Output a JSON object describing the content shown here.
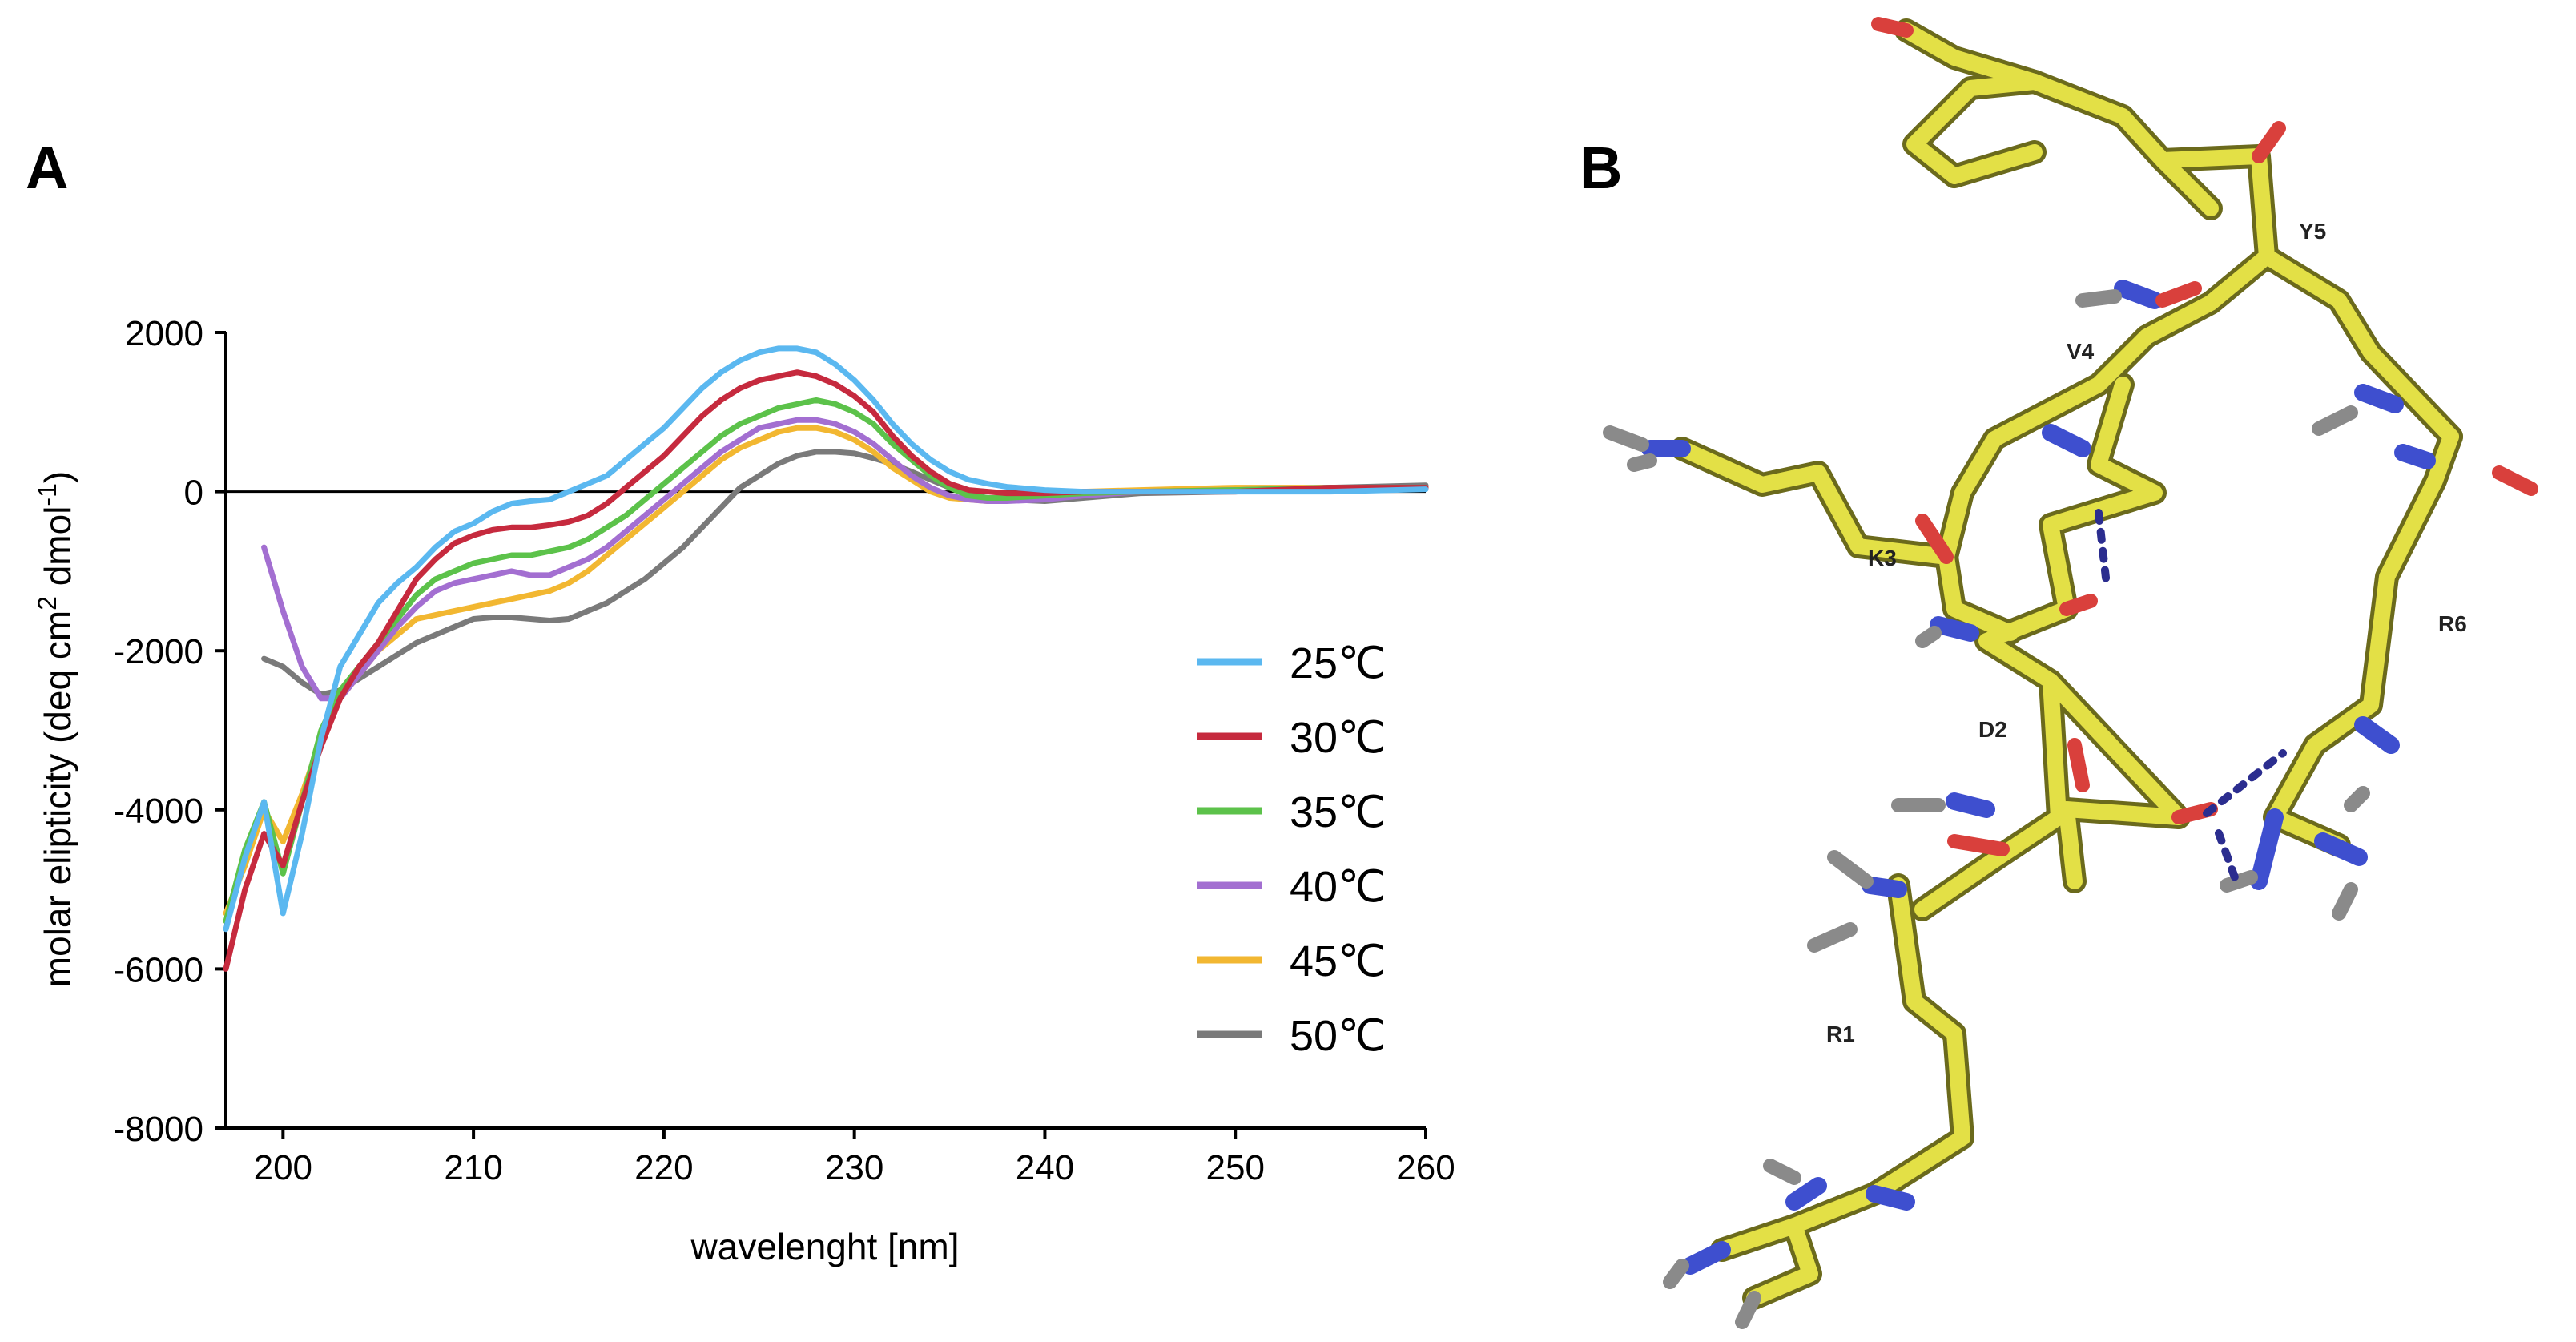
{
  "panels": {
    "a": "A",
    "b": "B"
  },
  "chart_data": {
    "type": "line",
    "xlabel": "wavelenght [nm]",
    "ylabel": "molar elipticity (deq cm",
    "ylabel_sup": "2",
    "ylabel_mid": " dmol",
    "ylabel_sup2": "-1",
    "ylabel_end": ")",
    "xlim": [
      197,
      260
    ],
    "ylim": [
      -8000,
      2000
    ],
    "xticks": [
      "200",
      "210",
      "220",
      "230",
      "240",
      "250",
      "260"
    ],
    "yticks": [
      "2000",
      "0",
      "-2000",
      "-4000",
      "-6000",
      "-8000"
    ],
    "legend_position": "right-middle",
    "series": [
      {
        "name": "25℃",
        "color": "#5bb8f0",
        "x": [
          197,
          198,
          199,
          200,
          201,
          202,
          203,
          204,
          205,
          206,
          207,
          208,
          209,
          210,
          211,
          212,
          213,
          214,
          215,
          216,
          217,
          218,
          219,
          220,
          221,
          222,
          223,
          224,
          225,
          226,
          227,
          228,
          229,
          230,
          231,
          232,
          233,
          234,
          235,
          236,
          237,
          238,
          240,
          242,
          245,
          250,
          255,
          260
        ],
        "y": [
          -5500,
          -4600,
          -3900,
          -5300,
          -4300,
          -3100,
          -2200,
          -1800,
          -1400,
          -1150,
          -950,
          -700,
          -500,
          -400,
          -250,
          -150,
          -120,
          -100,
          0,
          100,
          200,
          400,
          600,
          800,
          1050,
          1300,
          1500,
          1650,
          1750,
          1800,
          1800,
          1750,
          1600,
          1400,
          1150,
          850,
          600,
          400,
          250,
          150,
          100,
          60,
          20,
          0,
          0,
          0,
          0,
          30
        ]
      },
      {
        "name": "30℃",
        "color": "#c62a3e",
        "x": [
          197,
          198,
          199,
          200,
          201,
          202,
          203,
          204,
          205,
          206,
          207,
          208,
          209,
          210,
          211,
          212,
          213,
          214,
          215,
          216,
          217,
          218,
          219,
          220,
          221,
          222,
          223,
          224,
          225,
          226,
          227,
          228,
          229,
          230,
          231,
          232,
          233,
          234,
          235,
          236,
          237,
          238,
          240,
          242,
          245,
          250,
          255,
          260
        ],
        "y": [
          -6000,
          -5000,
          -4300,
          -4700,
          -3900,
          -3200,
          -2600,
          -2200,
          -1900,
          -1500,
          -1100,
          -850,
          -650,
          -550,
          -480,
          -450,
          -450,
          -420,
          -380,
          -300,
          -150,
          50,
          250,
          450,
          700,
          950,
          1150,
          1300,
          1400,
          1450,
          1500,
          1450,
          1350,
          1200,
          1000,
          700,
          450,
          250,
          100,
          20,
          0,
          -20,
          -20,
          0,
          0,
          0,
          50,
          50
        ]
      },
      {
        "name": "35℃",
        "color": "#5cc24a",
        "x": [
          197,
          198,
          199,
          200,
          201,
          202,
          203,
          204,
          205,
          206,
          207,
          208,
          209,
          210,
          211,
          212,
          213,
          214,
          215,
          216,
          217,
          218,
          219,
          220,
          221,
          222,
          223,
          224,
          225,
          226,
          227,
          228,
          229,
          230,
          231,
          232,
          233,
          234,
          235,
          236,
          237,
          238,
          240,
          242,
          245,
          250,
          255,
          260
        ],
        "y": [
          -5400,
          -4500,
          -3900,
          -4800,
          -3900,
          -3000,
          -2500,
          -2200,
          -1900,
          -1600,
          -1300,
          -1100,
          -1000,
          -900,
          -850,
          -800,
          -800,
          -750,
          -700,
          -600,
          -450,
          -300,
          -100,
          100,
          300,
          500,
          700,
          850,
          950,
          1050,
          1100,
          1150,
          1100,
          1000,
          850,
          600,
          400,
          200,
          50,
          -50,
          -80,
          -80,
          -50,
          -20,
          0,
          20,
          50,
          50
        ]
      },
      {
        "name": "40℃",
        "color": "#a36fd1",
        "x": [
          199,
          200,
          201,
          202,
          203,
          204,
          205,
          206,
          207,
          208,
          209,
          210,
          211,
          212,
          213,
          214,
          215,
          216,
          217,
          218,
          219,
          220,
          221,
          222,
          223,
          224,
          225,
          226,
          227,
          228,
          229,
          230,
          231,
          232,
          233,
          234,
          235,
          236,
          237,
          238,
          240,
          242,
          245,
          250,
          255,
          260
        ],
        "y": [
          -700,
          -1500,
          -2200,
          -2600,
          -2600,
          -2300,
          -2000,
          -1700,
          -1450,
          -1250,
          -1150,
          -1100,
          -1050,
          -1000,
          -1050,
          -1050,
          -950,
          -850,
          -700,
          -500,
          -300,
          -100,
          100,
          300,
          500,
          650,
          800,
          850,
          900,
          900,
          850,
          750,
          600,
          400,
          200,
          50,
          -50,
          -100,
          -120,
          -120,
          -100,
          -50,
          0,
          20,
          50,
          50
        ]
      },
      {
        "name": "45℃",
        "color": "#f2b731",
        "x": [
          197,
          198,
          199,
          200,
          201,
          202,
          203,
          204,
          205,
          206,
          207,
          208,
          209,
          210,
          211,
          212,
          213,
          214,
          215,
          216,
          217,
          218,
          219,
          220,
          221,
          222,
          223,
          224,
          225,
          226,
          227,
          228,
          229,
          230,
          231,
          232,
          233,
          234,
          235,
          236,
          237,
          238,
          240,
          242,
          245,
          250,
          255,
          260
        ],
        "y": [
          -5300,
          -4700,
          -4000,
          -4400,
          -3800,
          -3100,
          -2600,
          -2300,
          -2000,
          -1800,
          -1600,
          -1550,
          -1500,
          -1450,
          -1400,
          -1350,
          -1300,
          -1250,
          -1150,
          -1000,
          -800,
          -600,
          -400,
          -200,
          0,
          200,
          400,
          550,
          650,
          750,
          800,
          800,
          750,
          650,
          500,
          300,
          150,
          0,
          -80,
          -100,
          -120,
          -100,
          -50,
          0,
          20,
          50,
          50,
          50
        ]
      },
      {
        "name": "50℃",
        "color": "#7a7a7a",
        "x": [
          199,
          200,
          201,
          202,
          203,
          204,
          205,
          206,
          207,
          208,
          209,
          210,
          211,
          212,
          213,
          214,
          215,
          216,
          217,
          218,
          219,
          220,
          221,
          222,
          223,
          224,
          225,
          226,
          227,
          228,
          229,
          230,
          231,
          232,
          233,
          234,
          235,
          236,
          237,
          238,
          240,
          242,
          245,
          250,
          255,
          260
        ],
        "y": [
          -2100,
          -2200,
          -2400,
          -2550,
          -2500,
          -2350,
          -2200,
          -2050,
          -1900,
          -1800,
          -1700,
          -1600,
          -1580,
          -1580,
          -1600,
          -1620,
          -1600,
          -1500,
          -1400,
          -1250,
          -1100,
          -900,
          -700,
          -450,
          -200,
          50,
          200,
          350,
          450,
          500,
          500,
          480,
          420,
          350,
          250,
          150,
          50,
          -30,
          -80,
          -100,
          -120,
          -80,
          -20,
          0,
          50,
          80
        ]
      }
    ]
  },
  "structure": {
    "residues": [
      "Y5",
      "V4",
      "K3",
      "R6",
      "D2",
      "R1"
    ]
  }
}
